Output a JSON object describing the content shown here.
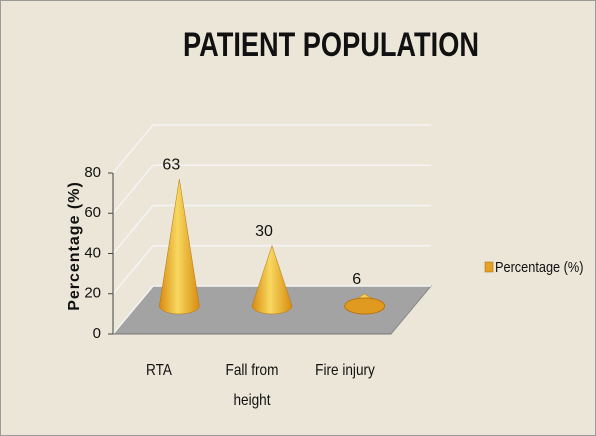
{
  "chart_data": {
    "type": "cone",
    "title": "PATIENT POPULATION",
    "y_label": "Percentage (%)",
    "categories": [
      "RTA",
      "Fall from height",
      "Fire injury"
    ],
    "series": [
      {
        "name": "Percentage (%)",
        "color": "#e8a020",
        "values": [
          63,
          30,
          6
        ]
      }
    ],
    "ylim": [
      0,
      80
    ],
    "yticks": [
      0,
      20,
      40,
      60,
      80
    ],
    "grid": true,
    "legend": "right"
  }
}
